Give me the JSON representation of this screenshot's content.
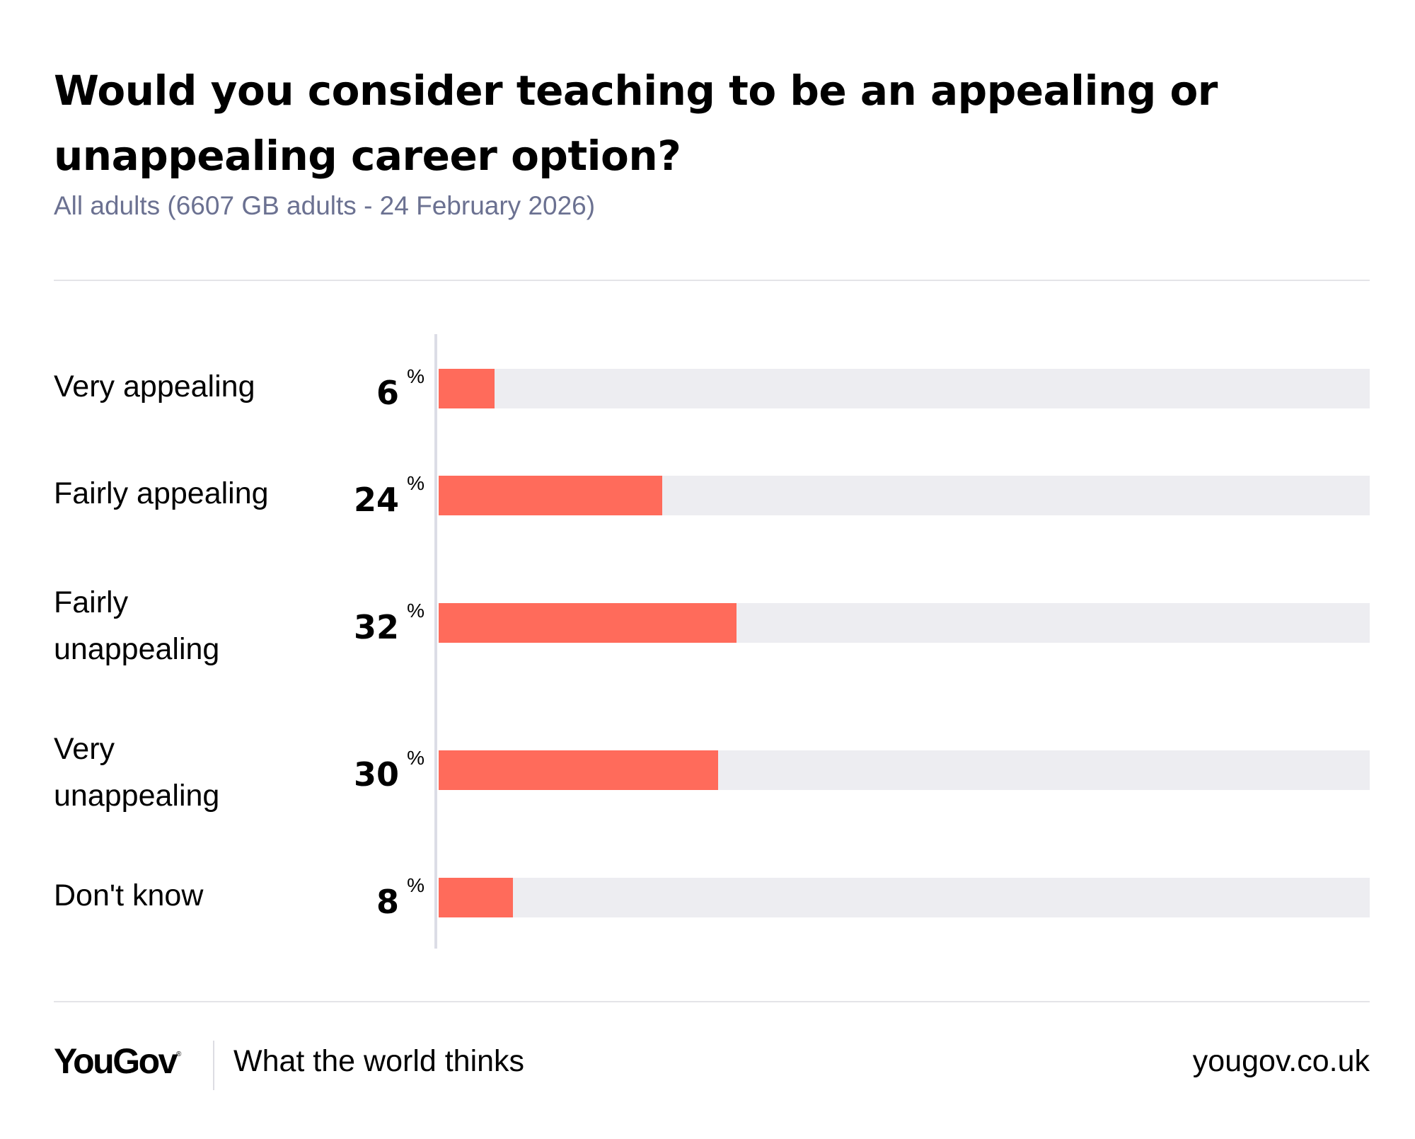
{
  "chart_data": {
    "type": "bar",
    "orientation": "horizontal",
    "title": "Would you consider teaching to be an appealing or unappealing career option?",
    "subtitle": "All adults (6607 GB adults - 24 February 2026)",
    "categories": [
      "Very appealing",
      "Fairly appealing",
      "Fairly unappealing",
      "Very unappealing",
      "Don't know"
    ],
    "values": [
      6,
      24,
      32,
      30,
      8
    ],
    "unit": "%",
    "xlim": [
      0,
      100
    ],
    "grid": false,
    "legend": "none",
    "bar_color": "#ff6b5b",
    "track_color": "#ededf1"
  },
  "footer": {
    "brand": "YouGov",
    "tagline": "What the world thinks",
    "url": "yougov.co.uk"
  },
  "colors": {
    "accent": "#ff6b5b",
    "subtitle": "#6b7191",
    "track": "#ededf1",
    "axis": "#dcdde6"
  }
}
